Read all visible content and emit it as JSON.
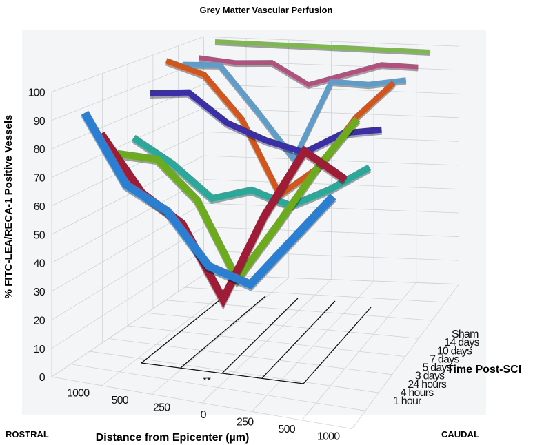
{
  "chart_data": {
    "type": "3d-ribbon-line",
    "title": "Grey Matter Vascular Perfusion",
    "ylabel": "% FITC-LEA/RECA-1 Positive Vessels",
    "xlabel": "Distance from Epicenter (µm)",
    "zlabel": "Time Post-SCI",
    "x_side_labels": {
      "left": "ROSTRAL",
      "right": "CAUDAL"
    },
    "categories": [
      "1000",
      "500",
      "250",
      "0",
      "250",
      "500",
      "1000"
    ],
    "yticks": [
      "0",
      "10",
      "20",
      "30",
      "40",
      "50",
      "60",
      "70",
      "80",
      "90",
      "100"
    ],
    "ylim": [
      0,
      100
    ],
    "grid": true,
    "annotation": "**",
    "series": [
      {
        "name": "1 hour",
        "color": "#2b7fd2",
        "values": [
          93,
          70,
          63,
          46,
          42,
          60,
          78
        ]
      },
      {
        "name": "4 hours",
        "color": "#9e1c36",
        "values": [
          83,
          64,
          55,
          30,
          62,
          88,
          80
        ]
      },
      {
        "name": "24 hours",
        "color": "#6cab1e",
        "values": [
          73,
          73,
          60,
          33,
          55,
          78,
          98
        ]
      },
      {
        "name": "3 days",
        "color": "#2aa89a",
        "values": [
          76,
          68,
          57,
          62,
          58,
          66,
          76
        ]
      },
      {
        "name": "5 days",
        "color": "#3b2fa8",
        "values": [
          90,
          92,
          82,
          77,
          74,
          83,
          86
        ]
      },
      {
        "name": "7 days",
        "color": "#d2561c",
        "values": [
          100,
          96,
          80,
          52,
          64,
          85,
          100
        ]
      },
      {
        "name": "10 days",
        "color": "#5e9cc9",
        "values": [
          96,
          97,
          80,
          62,
          94,
          94,
          97
        ]
      },
      {
        "name": "14 days",
        "color": "#b2507e",
        "values": [
          96,
          95,
          96,
          88,
          93,
          98,
          98
        ]
      },
      {
        "name": "Sham",
        "color": "#7db84a",
        "values": [
          100,
          100,
          100,
          100,
          100,
          100,
          100
        ]
      }
    ]
  }
}
